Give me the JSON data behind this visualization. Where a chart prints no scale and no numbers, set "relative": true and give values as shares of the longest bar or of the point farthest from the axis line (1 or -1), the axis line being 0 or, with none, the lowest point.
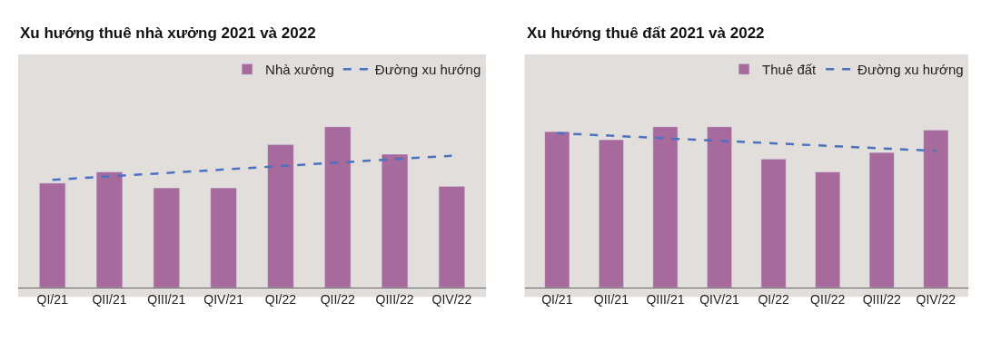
{
  "chart_data": [
    {
      "type": "bar",
      "title": "Xu hướng thuê nhà xưởng 2021 và 2022",
      "categories": [
        "QI/21",
        "QII/21",
        "QIII/21",
        "QIV/21",
        "QI/22",
        "QII/22",
        "QIII/22",
        "QIV/22"
      ],
      "relative": true,
      "legend": "top right",
      "series": [
        {
          "name": "Nhà xưởng",
          "color": "#a66b9c",
          "values": [
            0.65,
            0.72,
            0.62,
            0.62,
            0.89,
            1,
            0.83,
            0.63
          ]
        },
        {
          "name": "Đường xu hướng",
          "type": "line",
          "color": "#4a72c4",
          "line_style": "dashed",
          "marker": "none",
          "values": [
            0.67,
            null,
            null,
            null,
            null,
            null,
            null,
            0.82
          ]
        }
      ]
    },
    {
      "type": "bar",
      "title": "Xu hướng thuê đất 2021 và 2022",
      "categories": [
        "QI/21",
        "QII/21",
        "QIII/21",
        "QIV/21",
        "QI/22",
        "QII/22",
        "QIII/22",
        "QIV/22"
      ],
      "relative": true,
      "legend": "top right",
      "series": [
        {
          "name": "Thuê đất",
          "color": "#a66b9c",
          "values": [
            0.97,
            0.92,
            1.0,
            1,
            0.8,
            0.72,
            0.84,
            0.98
          ]
        },
        {
          "name": "Đường xu hướng",
          "type": "line",
          "color": "#4a72c4",
          "line_style": "dashed",
          "marker": "none",
          "values": [
            0.96,
            null,
            null,
            null,
            null,
            null,
            null,
            0.85
          ]
        }
      ]
    }
  ]
}
